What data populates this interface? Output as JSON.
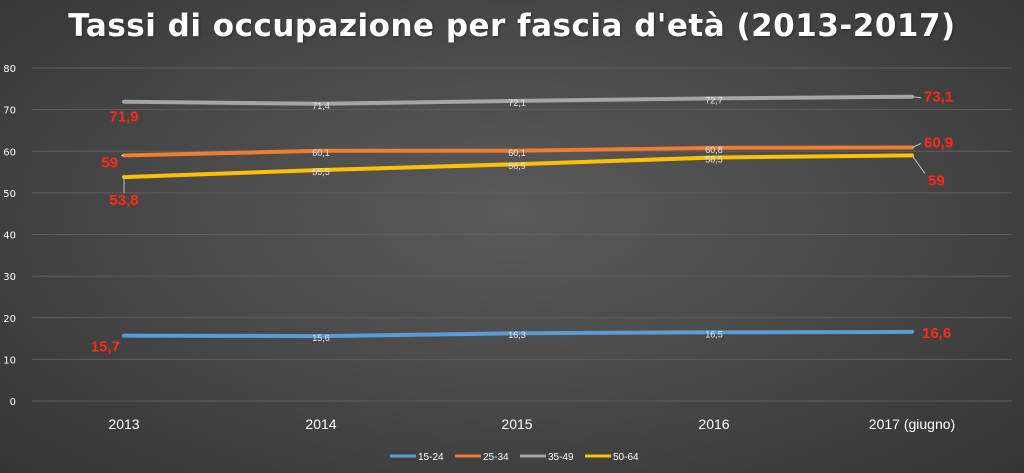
{
  "chart_data": {
    "type": "line",
    "title": "Tassi di occupazione per fascia d'età (2013-2017)",
    "categories": [
      "2013",
      "2014",
      "2015",
      "2016",
      "2017 (giugno)"
    ],
    "y_ticks": [
      0,
      10,
      20,
      30,
      40,
      50,
      60,
      70,
      80
    ],
    "ylim": [
      0,
      80
    ],
    "grid": true,
    "legend_position": "bottom",
    "series": [
      {
        "name": "15-24",
        "color": "#5b9bd5",
        "values": [
          15.7,
          15.6,
          16.3,
          16.5,
          16.6
        ],
        "labels": [
          "15,7",
          "15,6",
          "16,3",
          "16,5",
          "16,6"
        ]
      },
      {
        "name": "25-34",
        "color": "#ed7d31",
        "values": [
          59,
          60.1,
          60.1,
          60.8,
          60.9
        ],
        "labels": [
          "59",
          "60,1",
          "60,1",
          "60,8",
          "60,9"
        ]
      },
      {
        "name": "35-49",
        "color": "#a5a5a5",
        "values": [
          71.9,
          71.4,
          72.1,
          72.7,
          73.1
        ],
        "labels": [
          "71,9",
          "71,4",
          "72,1",
          "72,7",
          "73,1"
        ]
      },
      {
        "name": "50-64",
        "color": "#ffc000",
        "values": [
          53.8,
          55.5,
          56.9,
          58.5,
          59
        ],
        "labels": [
          "53,8",
          "55,5",
          "56,9",
          "58,5",
          "59"
        ]
      }
    ],
    "label_colors": {
      "highlight": "#ff2a1a",
      "inner": "#e8e8e8"
    },
    "grid_color": "#5e5e5e",
    "text_color": "#ffffff"
  }
}
